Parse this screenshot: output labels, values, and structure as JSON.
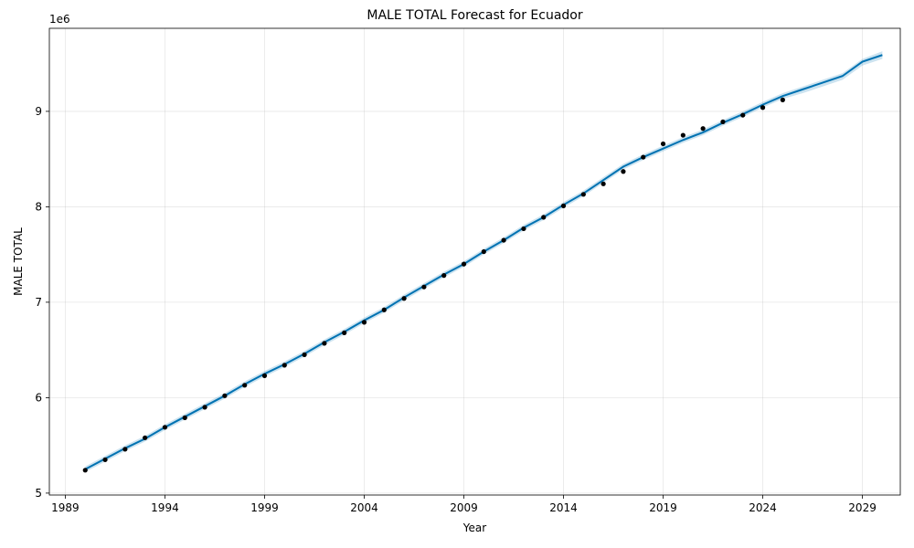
{
  "chart_data": {
    "type": "line",
    "title": "MALE TOTAL Forecast for Ecuador",
    "xlabel": "Year",
    "ylabel": "MALE TOTAL",
    "y_offset_label": "1e6",
    "xlim": [
      1988.2,
      2030.9
    ],
    "ylim": [
      4.98,
      9.87
    ],
    "x_ticks": [
      1989,
      1994,
      1999,
      2004,
      2009,
      2014,
      2019,
      2024,
      2029
    ],
    "x_tick_labels": [
      "1989",
      "1994",
      "1999",
      "2004",
      "2009",
      "2014",
      "2019",
      "2024",
      "2029"
    ],
    "y_ticks": [
      5,
      6,
      7,
      8,
      9
    ],
    "y_tick_labels": [
      "5",
      "6",
      "7",
      "8",
      "9"
    ],
    "grid": true,
    "colors": {
      "forecast_line": "#0072B2",
      "uncertainty_band": "#0072B2",
      "observed_points": "#000000"
    },
    "observed": {
      "x": [
        1990,
        1991,
        1992,
        1993,
        1994,
        1995,
        1996,
        1997,
        1998,
        1999,
        2000,
        2001,
        2002,
        2003,
        2004,
        2005,
        2006,
        2007,
        2008,
        2009,
        2010,
        2011,
        2012,
        2013,
        2014,
        2015,
        2016,
        2017,
        2018,
        2019,
        2020,
        2021,
        2022,
        2023,
        2024,
        2025
      ],
      "y": [
        5.24,
        5.35,
        5.46,
        5.58,
        5.69,
        5.79,
        5.9,
        6.02,
        6.13,
        6.23,
        6.34,
        6.45,
        6.57,
        6.68,
        6.79,
        6.92,
        7.04,
        7.16,
        7.28,
        7.4,
        7.53,
        7.65,
        7.77,
        7.89,
        8.01,
        8.13,
        8.24,
        8.37,
        8.52,
        8.66,
        8.75,
        8.82,
        8.89,
        8.96,
        9.04,
        9.12
      ]
    },
    "forecast": {
      "x": [
        1990,
        1991,
        1992,
        1993,
        1994,
        1995,
        1996,
        1997,
        1998,
        1999,
        2000,
        2001,
        2002,
        2003,
        2004,
        2005,
        2006,
        2007,
        2008,
        2009,
        2010,
        2011,
        2012,
        2013,
        2014,
        2015,
        2016,
        2017,
        2018,
        2019,
        2020,
        2021,
        2022,
        2023,
        2024,
        2025,
        2026,
        2027,
        2028,
        2029,
        2030
      ],
      "yhat": [
        5.25,
        5.36,
        5.47,
        5.57,
        5.69,
        5.8,
        5.91,
        6.02,
        6.14,
        6.25,
        6.35,
        6.46,
        6.58,
        6.69,
        6.81,
        6.92,
        7.05,
        7.17,
        7.29,
        7.4,
        7.53,
        7.65,
        7.78,
        7.89,
        8.02,
        8.14,
        8.28,
        8.42,
        8.52,
        8.61,
        8.7,
        8.78,
        8.88,
        8.97,
        9.07,
        9.16,
        9.23,
        9.3,
        9.37,
        9.52,
        9.59
      ],
      "yhat_lower": [
        5.22,
        5.33,
        5.44,
        5.54,
        5.66,
        5.77,
        5.88,
        5.99,
        6.11,
        6.22,
        6.32,
        6.43,
        6.55,
        6.66,
        6.78,
        6.89,
        7.02,
        7.14,
        7.26,
        7.37,
        7.5,
        7.62,
        7.75,
        7.86,
        7.99,
        8.11,
        8.25,
        8.39,
        8.49,
        8.58,
        8.67,
        8.75,
        8.85,
        8.94,
        9.04,
        9.13,
        9.19,
        9.26,
        9.33,
        9.48,
        9.55
      ],
      "yhat_upper": [
        5.28,
        5.39,
        5.5,
        5.6,
        5.72,
        5.83,
        5.94,
        6.05,
        6.17,
        6.28,
        6.38,
        6.49,
        6.61,
        6.72,
        6.84,
        6.95,
        7.08,
        7.2,
        7.32,
        7.43,
        7.56,
        7.68,
        7.81,
        7.92,
        8.05,
        8.17,
        8.31,
        8.45,
        8.55,
        8.64,
        8.73,
        8.81,
        8.91,
        9.0,
        9.1,
        9.19,
        9.26,
        9.33,
        9.4,
        9.55,
        9.63
      ]
    }
  }
}
